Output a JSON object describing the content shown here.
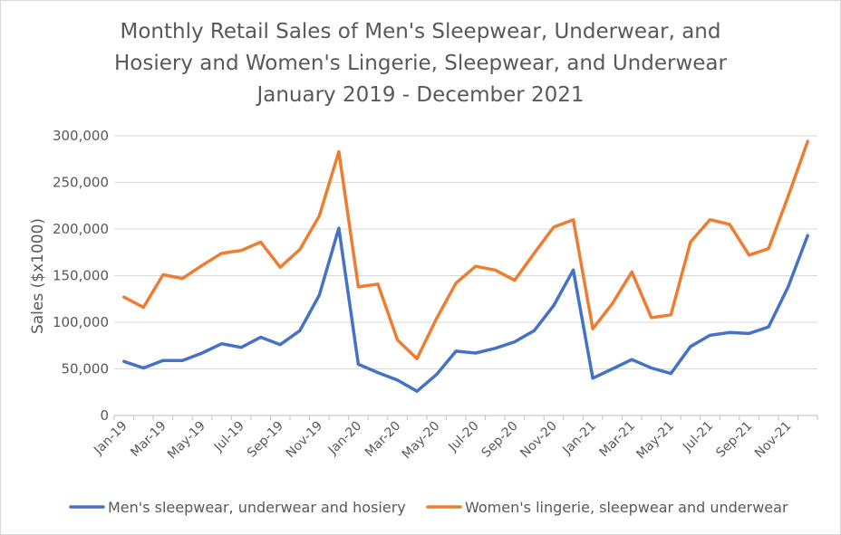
{
  "chart_data": {
    "type": "line",
    "title_lines": [
      "Monthly Retail Sales of Men's Sleepwear, Underwear, and",
      "Hosiery and Women's Lingerie, Sleepwear, and Underwear",
      "January 2019 - December 2021"
    ],
    "ylabel": "Sales ($x1000)",
    "xlabel": "",
    "ylim": [
      0,
      300000
    ],
    "yticks": [
      0,
      50000,
      100000,
      150000,
      200000,
      250000,
      300000
    ],
    "ytick_labels": [
      "0",
      "50,000",
      "100,000",
      "150,000",
      "200,000",
      "250,000",
      "300,000"
    ],
    "categories": [
      "Jan-19",
      "Feb-19",
      "Mar-19",
      "Apr-19",
      "May-19",
      "Jun-19",
      "Jul-19",
      "Aug-19",
      "Sep-19",
      "Oct-19",
      "Nov-19",
      "Dec-19",
      "Jan-20",
      "Feb-20",
      "Mar-20",
      "Apr-20",
      "May-20",
      "Jun-20",
      "Jul-20",
      "Aug-20",
      "Sep-20",
      "Oct-20",
      "Nov-20",
      "Dec-20",
      "Jan-21",
      "Feb-21",
      "Mar-21",
      "Apr-21",
      "May-21",
      "Jun-21",
      "Jul-21",
      "Aug-21",
      "Sep-21",
      "Oct-21",
      "Nov-21",
      "Dec-21"
    ],
    "xtick_labels": [
      "Jan-19",
      "Mar-19",
      "May-19",
      "Jul-19",
      "Sep-19",
      "Nov-19",
      "Jan-20",
      "Mar-20",
      "May-20",
      "Jul-20",
      "Sep-20",
      "Nov-20",
      "Jan-21",
      "Mar-21",
      "May-21",
      "Jul-21",
      "Sep-21",
      "Nov-21"
    ],
    "series": [
      {
        "name": "Men's sleepwear, underwear and hosiery",
        "color": "#4472c4",
        "values": [
          58000,
          51000,
          59000,
          59000,
          67000,
          77000,
          73000,
          84000,
          76000,
          91000,
          129000,
          201000,
          55000,
          46000,
          38000,
          26000,
          44000,
          69000,
          67000,
          72000,
          79000,
          91000,
          118000,
          156000,
          40000,
          50000,
          60000,
          51000,
          45000,
          74000,
          86000,
          89000,
          88000,
          95000,
          138000,
          193000
        ]
      },
      {
        "name": "Women's lingerie, sleepwear and underwear",
        "color": "#ed7d31",
        "values": [
          127000,
          116000,
          151000,
          147000,
          161000,
          174000,
          177000,
          186000,
          159000,
          178000,
          214000,
          283000,
          138000,
          141000,
          81000,
          61000,
          104000,
          142000,
          160000,
          156000,
          145000,
          174000,
          202000,
          210000,
          93000,
          120000,
          154000,
          105000,
          108000,
          186000,
          210000,
          205000,
          172000,
          179000,
          235000,
          294000
        ]
      }
    ],
    "legend_position": "bottom",
    "grid": true
  }
}
